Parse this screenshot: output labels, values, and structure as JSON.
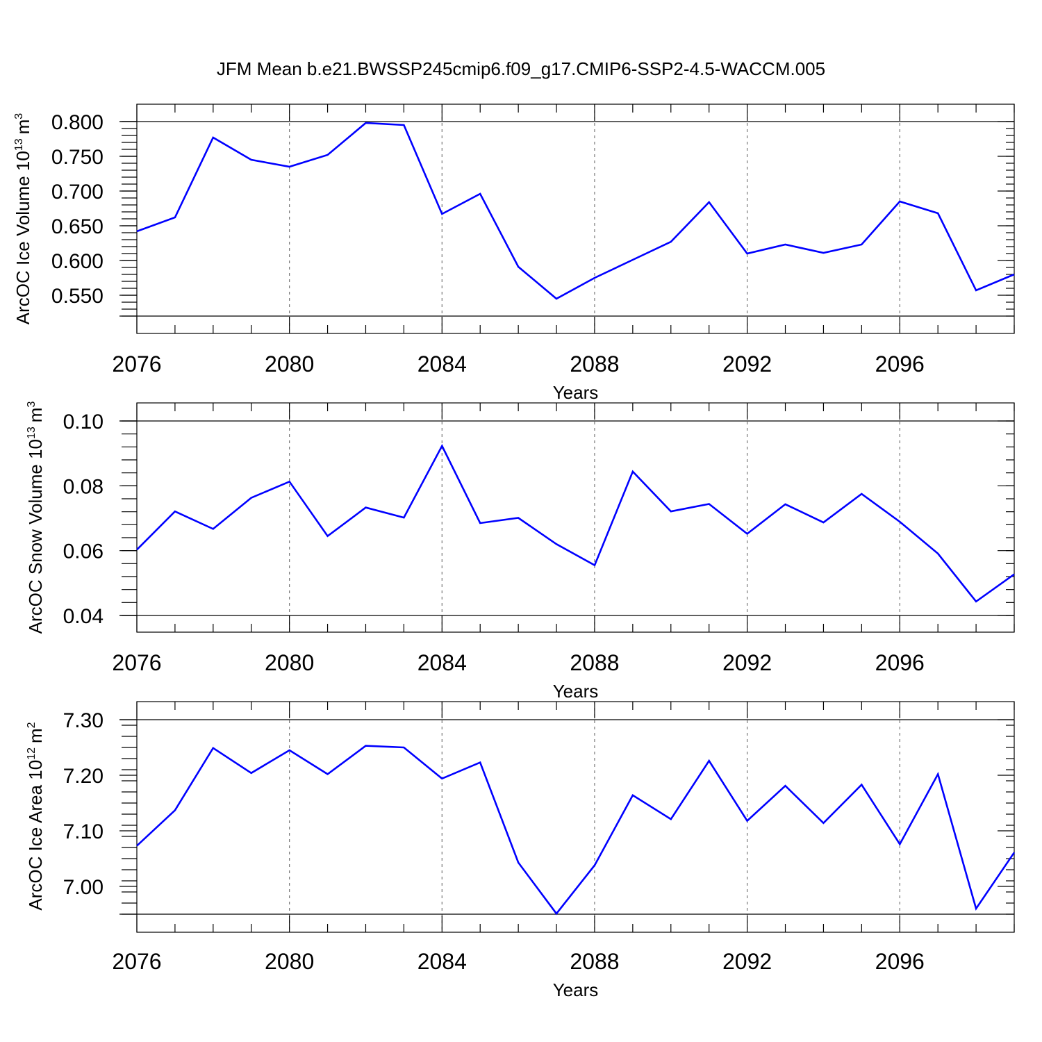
{
  "figure": {
    "title": "JFM Mean b.e21.BWSSP245cmip6.f09_g17.CMIP6-SSP2-4.5-WACCM.005",
    "series_color": "#0000ff"
  },
  "chart_data": [
    {
      "type": "line",
      "xlabel": "Years",
      "ylabel_text": "ArcOC Ice Volume 10",
      "ylabel_exp": "13",
      "ylabel_unit": "m",
      "ylabel_unit_exp": "3",
      "xlim": [
        2076,
        2099
      ],
      "ylim": [
        0.52,
        0.8
      ],
      "x_major_ticks": [
        2076,
        2080,
        2084,
        2088,
        2092,
        2096
      ],
      "x_tick_labels": [
        "2076",
        "2080",
        "2084",
        "2088",
        "2092",
        "2096"
      ],
      "x_minor_step": 1,
      "y_major_ticks": [
        0.55,
        0.6,
        0.65,
        0.7,
        0.75,
        0.8
      ],
      "y_tick_labels": [
        "0.550",
        "0.600",
        "0.650",
        "0.700",
        "0.750",
        "0.800"
      ],
      "y_minor_step": 0.01,
      "grid_x": true,
      "x": [
        2076,
        2077,
        2078,
        2079,
        2080,
        2081,
        2082,
        2083,
        2084,
        2085,
        2086,
        2087,
        2088,
        2089,
        2090,
        2091,
        2092,
        2093,
        2094,
        2095,
        2096,
        2097,
        2098,
        2099
      ],
      "series": [
        {
          "name": "ArcOC Ice Volume",
          "values": [
            0.642,
            0.662,
            0.777,
            0.745,
            0.735,
            0.752,
            0.798,
            0.795,
            0.667,
            0.696,
            0.591,
            0.545,
            0.575,
            0.601,
            0.627,
            0.684,
            0.61,
            0.623,
            0.611,
            0.623,
            0.685,
            0.668,
            0.557,
            0.58
          ]
        }
      ]
    },
    {
      "type": "line",
      "xlabel": "Years",
      "ylabel_text": "ArcOC Snow Volume 10",
      "ylabel_exp": "13",
      "ylabel_unit": "m",
      "ylabel_unit_exp": "3",
      "xlim": [
        2076,
        2099
      ],
      "ylim": [
        0.04,
        0.1
      ],
      "x_major_ticks": [
        2076,
        2080,
        2084,
        2088,
        2092,
        2096
      ],
      "x_tick_labels": [
        "2076",
        "2080",
        "2084",
        "2088",
        "2092",
        "2096"
      ],
      "x_minor_step": 1,
      "y_major_ticks": [
        0.04,
        0.06,
        0.08,
        0.1
      ],
      "y_tick_labels": [
        "0.04",
        "0.06",
        "0.08",
        "0.10"
      ],
      "y_minor_step": 0.004,
      "grid_x": true,
      "x": [
        2076,
        2077,
        2078,
        2079,
        2080,
        2081,
        2082,
        2083,
        2084,
        2085,
        2086,
        2087,
        2088,
        2089,
        2090,
        2091,
        2092,
        2093,
        2094,
        2095,
        2096,
        2097,
        2098,
        2099
      ],
      "series": [
        {
          "name": "ArcOC Snow Volume",
          "values": [
            0.0603,
            0.0721,
            0.0667,
            0.0763,
            0.0813,
            0.0645,
            0.0733,
            0.0702,
            0.0923,
            0.0685,
            0.0701,
            0.062,
            0.0555,
            0.0844,
            0.0721,
            0.0744,
            0.0652,
            0.0743,
            0.0687,
            0.0775,
            0.0689,
            0.0591,
            0.0443,
            0.0527
          ]
        }
      ]
    },
    {
      "type": "line",
      "xlabel": "Years",
      "ylabel_text": "ArcOC Ice Area 10",
      "ylabel_exp": "12",
      "ylabel_unit": "m",
      "ylabel_unit_exp": "2",
      "xlim": [
        2076,
        2099
      ],
      "ylim": [
        6.95,
        7.3
      ],
      "x_major_ticks": [
        2076,
        2080,
        2084,
        2088,
        2092,
        2096
      ],
      "x_tick_labels": [
        "2076",
        "2080",
        "2084",
        "2088",
        "2092",
        "2096"
      ],
      "x_minor_step": 1,
      "y_major_ticks": [
        7.0,
        7.1,
        7.2,
        7.3
      ],
      "y_tick_labels": [
        "7.00",
        "7.10",
        "7.20",
        "7.30"
      ],
      "y_minor_step": 0.02,
      "grid_x": true,
      "x": [
        2076,
        2077,
        2078,
        2079,
        2080,
        2081,
        2082,
        2083,
        2084,
        2085,
        2086,
        2087,
        2088,
        2089,
        2090,
        2091,
        2092,
        2093,
        2094,
        2095,
        2096,
        2097,
        2098,
        2099
      ],
      "series": [
        {
          "name": "ArcOC Ice Area",
          "values": [
            7.073,
            7.137,
            7.249,
            7.204,
            7.245,
            7.202,
            7.253,
            7.25,
            7.194,
            7.223,
            7.043,
            6.951,
            7.038,
            7.164,
            7.121,
            7.226,
            7.118,
            7.181,
            7.114,
            7.183,
            7.076,
            7.202,
            6.96,
            7.061
          ]
        }
      ]
    }
  ]
}
